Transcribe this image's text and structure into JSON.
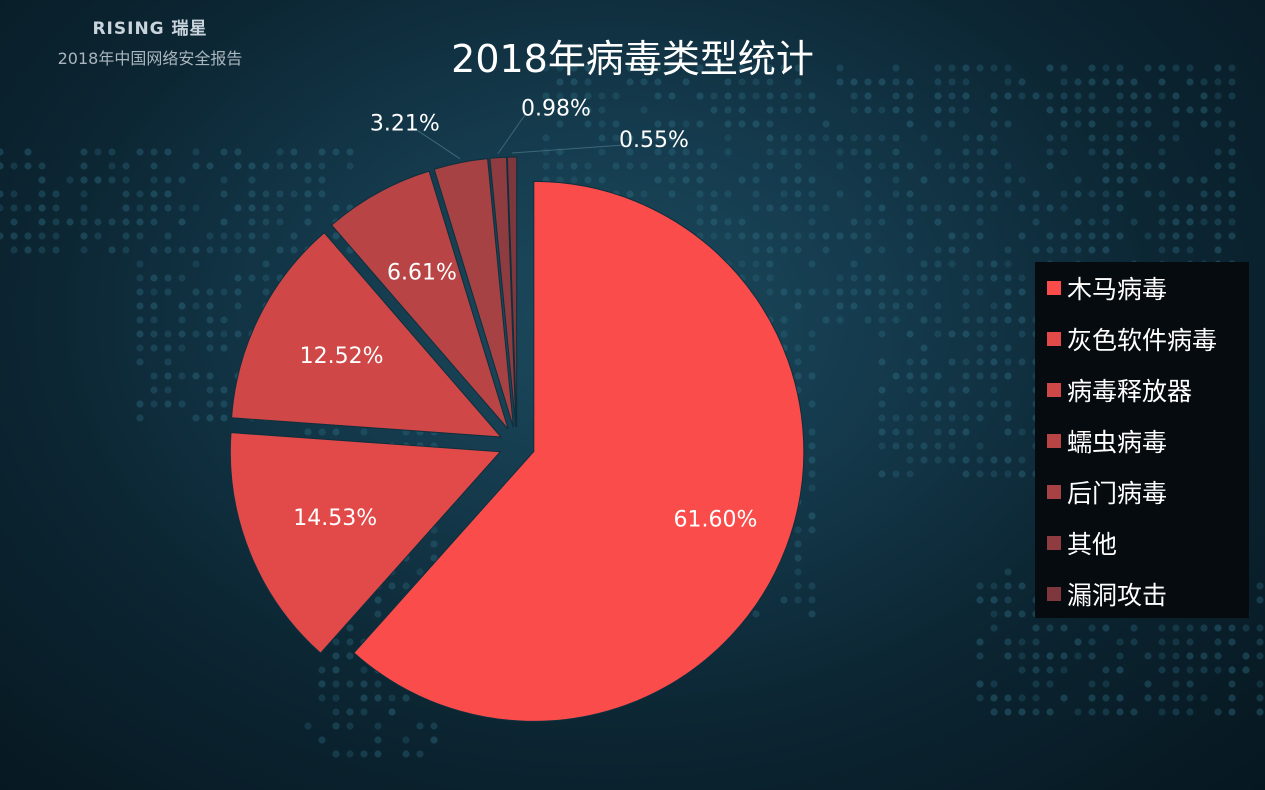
{
  "header": {
    "brand_logo": "RISING 瑞星",
    "brand_subtitle": "2018年中国网络安全报告"
  },
  "colors": {
    "background": "#0c2633",
    "dot": "#2e6b80",
    "slices": [
      "#fa4d4b",
      "#e24a49",
      "#cf4747",
      "#b94446",
      "#a74244",
      "#8e3c40",
      "#7e373c"
    ]
  },
  "chart_data": {
    "type": "pie",
    "title": "2018年病毒类型统计",
    "categories": [
      "木马病毒",
      "灰色软件病毒",
      "病毒释放器",
      "蠕虫病毒",
      "后门病毒",
      "其他",
      "漏洞攻击"
    ],
    "values": [
      61.6,
      14.53,
      12.52,
      6.61,
      3.21,
      0.98,
      0.55
    ],
    "value_labels": [
      "61.60%",
      "14.53%",
      "12.52%",
      "6.61%",
      "3.21%",
      "0.98%",
      "0.55%"
    ],
    "exploded": true,
    "legend_position": "right"
  }
}
